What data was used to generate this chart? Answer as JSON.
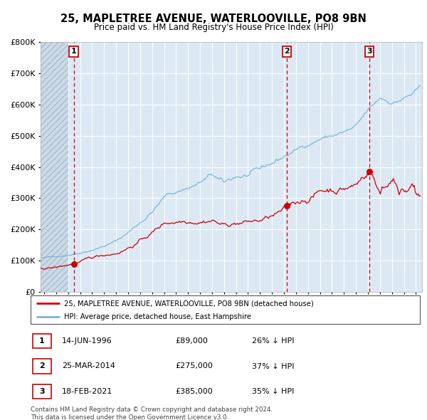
{
  "title": "25, MAPLETREE AVENUE, WATERLOOVILLE, PO8 9BN",
  "subtitle": "Price paid vs. HM Land Registry's House Price Index (HPI)",
  "legend_label_red": "25, MAPLETREE AVENUE, WATERLOOVILLE, PO8 9BN (detached house)",
  "legend_label_blue": "HPI: Average price, detached house, East Hampshire",
  "footer_line1": "Contains HM Land Registry data © Crown copyright and database right 2024.",
  "footer_line2": "This data is licensed under the Open Government Licence v3.0.",
  "sales": [
    {
      "num": 1,
      "date_label": "14-JUN-1996",
      "date_x": 1996.46,
      "price": 89000,
      "pct": "26%",
      "dir": "↓"
    },
    {
      "num": 2,
      "date_label": "25-MAR-2014",
      "date_x": 2014.23,
      "price": 275000,
      "pct": "37%",
      "dir": "↓"
    },
    {
      "num": 3,
      "date_label": "18-FEB-2021",
      "date_x": 2021.12,
      "price": 385000,
      "pct": "35%",
      "dir": "↓"
    }
  ],
  "table_rows": [
    {
      "num": 1,
      "date": "14-JUN-1996",
      "price": "£89,000",
      "pct": "26% ↓ HPI"
    },
    {
      "num": 2,
      "date": "25-MAR-2014",
      "price": "£275,000",
      "pct": "37% ↓ HPI"
    },
    {
      "num": 3,
      "date": "18-FEB-2021",
      "price": "£385,000",
      "pct": "35% ↓ HPI"
    }
  ],
  "ylim": [
    0,
    800000
  ],
  "xlim_start": 1993.7,
  "xlim_end": 2025.5,
  "hatch_end": 1996.0,
  "bg_color": "#dce9f5",
  "red_color": "#cc0000",
  "blue_color": "#7ab3d4",
  "vline_color": "#cc0000",
  "grid_color": "#ffffff",
  "hatch_bg": "#c8d8e8"
}
